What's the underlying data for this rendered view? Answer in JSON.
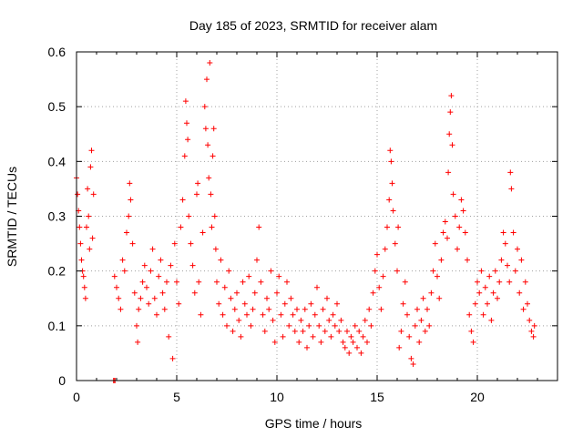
{
  "chart_data": {
    "type": "scatter",
    "title": "Day 185 of 2023, SRMTID for receiver alam",
    "xlabel": "GPS time / hours",
    "ylabel": "SRMTID / TECUs",
    "xlim": [
      0,
      24
    ],
    "ylim": [
      0,
      0.6
    ],
    "xticks": [
      0,
      5,
      10,
      15,
      20
    ],
    "yticks": [
      0,
      0.1,
      0.2,
      0.3,
      0.4,
      0.5,
      0.6
    ],
    "xtick_labels": [
      "0",
      "5",
      "10",
      "15",
      "20"
    ],
    "ytick_labels": [
      "0",
      "0.1",
      "0.2",
      "0.3",
      "0.4",
      "0.5",
      "0.6"
    ],
    "grid": true,
    "marker": "+",
    "color": "#ff0000",
    "series": [
      {
        "name": "SRMTID",
        "points": [
          [
            0.0,
            0.37
          ],
          [
            0.05,
            0.34
          ],
          [
            0.1,
            0.31
          ],
          [
            0.15,
            0.28
          ],
          [
            0.2,
            0.25
          ],
          [
            0.25,
            0.22
          ],
          [
            0.3,
            0.2
          ],
          [
            0.35,
            0.19
          ],
          [
            0.4,
            0.17
          ],
          [
            0.45,
            0.15
          ],
          [
            0.5,
            0.28
          ],
          [
            0.55,
            0.35
          ],
          [
            0.6,
            0.3
          ],
          [
            0.65,
            0.24
          ],
          [
            0.7,
            0.39
          ],
          [
            0.75,
            0.42
          ],
          [
            0.8,
            0.26
          ],
          [
            0.85,
            0.34
          ],
          [
            1.85,
            0.0
          ],
          [
            1.9,
            0.0
          ],
          [
            1.92,
            0.0
          ],
          [
            1.9,
            0.19
          ],
          [
            2.0,
            0.17
          ],
          [
            2.1,
            0.15
          ],
          [
            2.2,
            0.13
          ],
          [
            2.3,
            0.22
          ],
          [
            2.4,
            0.2
          ],
          [
            2.5,
            0.27
          ],
          [
            2.6,
            0.3
          ],
          [
            2.65,
            0.36
          ],
          [
            2.7,
            0.33
          ],
          [
            2.8,
            0.25
          ],
          [
            2.9,
            0.16
          ],
          [
            3.0,
            0.1
          ],
          [
            3.05,
            0.07
          ],
          [
            3.1,
            0.13
          ],
          [
            3.2,
            0.15
          ],
          [
            3.3,
            0.18
          ],
          [
            3.4,
            0.21
          ],
          [
            3.5,
            0.17
          ],
          [
            3.6,
            0.14
          ],
          [
            3.7,
            0.2
          ],
          [
            3.8,
            0.24
          ],
          [
            3.9,
            0.15
          ],
          [
            4.0,
            0.12
          ],
          [
            4.1,
            0.19
          ],
          [
            4.2,
            0.22
          ],
          [
            4.3,
            0.16
          ],
          [
            4.4,
            0.13
          ],
          [
            4.5,
            0.18
          ],
          [
            4.6,
            0.08
          ],
          [
            4.7,
            0.21
          ],
          [
            4.8,
            0.04
          ],
          [
            4.9,
            0.25
          ],
          [
            5.0,
            0.18
          ],
          [
            5.1,
            0.14
          ],
          [
            5.2,
            0.28
          ],
          [
            5.3,
            0.33
          ],
          [
            5.4,
            0.41
          ],
          [
            5.45,
            0.51
          ],
          [
            5.5,
            0.47
          ],
          [
            5.55,
            0.44
          ],
          [
            5.6,
            0.3
          ],
          [
            5.7,
            0.25
          ],
          [
            5.8,
            0.21
          ],
          [
            5.9,
            0.16
          ],
          [
            6.0,
            0.34
          ],
          [
            6.05,
            0.36
          ],
          [
            6.1,
            0.18
          ],
          [
            6.2,
            0.12
          ],
          [
            6.3,
            0.27
          ],
          [
            6.4,
            0.5
          ],
          [
            6.45,
            0.46
          ],
          [
            6.5,
            0.55
          ],
          [
            6.55,
            0.43
          ],
          [
            6.6,
            0.37
          ],
          [
            6.65,
            0.58
          ],
          [
            6.7,
            0.34
          ],
          [
            6.75,
            0.28
          ],
          [
            6.8,
            0.41
          ],
          [
            6.85,
            0.46
          ],
          [
            6.9,
            0.3
          ],
          [
            6.95,
            0.24
          ],
          [
            7.0,
            0.18
          ],
          [
            7.1,
            0.14
          ],
          [
            7.2,
            0.22
          ],
          [
            7.3,
            0.12
          ],
          [
            7.4,
            0.17
          ],
          [
            7.5,
            0.1
          ],
          [
            7.6,
            0.2
          ],
          [
            7.7,
            0.15
          ],
          [
            7.8,
            0.09
          ],
          [
            7.9,
            0.13
          ],
          [
            8.0,
            0.16
          ],
          [
            8.1,
            0.11
          ],
          [
            8.2,
            0.08
          ],
          [
            8.3,
            0.18
          ],
          [
            8.4,
            0.14
          ],
          [
            8.5,
            0.12
          ],
          [
            8.6,
            0.19
          ],
          [
            8.7,
            0.1
          ],
          [
            8.8,
            0.13
          ],
          [
            8.9,
            0.16
          ],
          [
            9.0,
            0.22
          ],
          [
            9.1,
            0.28
          ],
          [
            9.2,
            0.18
          ],
          [
            9.3,
            0.12
          ],
          [
            9.4,
            0.09
          ],
          [
            9.5,
            0.15
          ],
          [
            9.6,
            0.13
          ],
          [
            9.7,
            0.2
          ],
          [
            9.8,
            0.11
          ],
          [
            9.9,
            0.07
          ],
          [
            10.0,
            0.16
          ],
          [
            10.1,
            0.19
          ],
          [
            10.2,
            0.12
          ],
          [
            10.3,
            0.08
          ],
          [
            10.4,
            0.14
          ],
          [
            10.5,
            0.18
          ],
          [
            10.6,
            0.1
          ],
          [
            10.7,
            0.15
          ],
          [
            10.8,
            0.12
          ],
          [
            10.9,
            0.09
          ],
          [
            11.0,
            0.13
          ],
          [
            11.1,
            0.07
          ],
          [
            11.2,
            0.11
          ],
          [
            11.3,
            0.09
          ],
          [
            11.4,
            0.13
          ],
          [
            11.5,
            0.06
          ],
          [
            11.6,
            0.1
          ],
          [
            11.7,
            0.14
          ],
          [
            11.8,
            0.08
          ],
          [
            11.9,
            0.12
          ],
          [
            12.0,
            0.17
          ],
          [
            12.1,
            0.1
          ],
          [
            12.2,
            0.07
          ],
          [
            12.3,
            0.13
          ],
          [
            12.4,
            0.09
          ],
          [
            12.5,
            0.15
          ],
          [
            12.6,
            0.11
          ],
          [
            12.7,
            0.08
          ],
          [
            12.8,
            0.12
          ],
          [
            12.9,
            0.1
          ],
          [
            13.0,
            0.14
          ],
          [
            13.1,
            0.09
          ],
          [
            13.2,
            0.11
          ],
          [
            13.3,
            0.07
          ],
          [
            13.4,
            0.06
          ],
          [
            13.5,
            0.09
          ],
          [
            13.6,
            0.05
          ],
          [
            13.7,
            0.08
          ],
          [
            13.8,
            0.07
          ],
          [
            13.9,
            0.1
          ],
          [
            14.0,
            0.06
          ],
          [
            14.1,
            0.09
          ],
          [
            14.2,
            0.05
          ],
          [
            14.3,
            0.08
          ],
          [
            14.4,
            0.11
          ],
          [
            14.5,
            0.07
          ],
          [
            14.6,
            0.13
          ],
          [
            14.7,
            0.1
          ],
          [
            14.8,
            0.16
          ],
          [
            14.9,
            0.2
          ],
          [
            15.0,
            0.23
          ],
          [
            15.1,
            0.17
          ],
          [
            15.2,
            0.13
          ],
          [
            15.3,
            0.19
          ],
          [
            15.4,
            0.24
          ],
          [
            15.5,
            0.28
          ],
          [
            15.6,
            0.33
          ],
          [
            15.65,
            0.42
          ],
          [
            15.7,
            0.4
          ],
          [
            15.75,
            0.36
          ],
          [
            15.8,
            0.31
          ],
          [
            15.9,
            0.25
          ],
          [
            16.0,
            0.2
          ],
          [
            16.05,
            0.28
          ],
          [
            16.1,
            0.06
          ],
          [
            16.2,
            0.09
          ],
          [
            16.3,
            0.14
          ],
          [
            16.4,
            0.18
          ],
          [
            16.5,
            0.12
          ],
          [
            16.6,
            0.08
          ],
          [
            16.7,
            0.04
          ],
          [
            16.8,
            0.03
          ],
          [
            16.9,
            0.1
          ],
          [
            17.0,
            0.13
          ],
          [
            17.1,
            0.07
          ],
          [
            17.2,
            0.11
          ],
          [
            17.3,
            0.15
          ],
          [
            17.4,
            0.09
          ],
          [
            17.5,
            0.13
          ],
          [
            17.6,
            0.1
          ],
          [
            17.7,
            0.16
          ],
          [
            17.8,
            0.2
          ],
          [
            17.9,
            0.25
          ],
          [
            18.0,
            0.19
          ],
          [
            18.1,
            0.15
          ],
          [
            18.2,
            0.22
          ],
          [
            18.3,
            0.27
          ],
          [
            18.4,
            0.29
          ],
          [
            18.5,
            0.26
          ],
          [
            18.55,
            0.38
          ],
          [
            18.6,
            0.45
          ],
          [
            18.65,
            0.49
          ],
          [
            18.7,
            0.52
          ],
          [
            18.75,
            0.43
          ],
          [
            18.8,
            0.34
          ],
          [
            18.9,
            0.3
          ],
          [
            19.0,
            0.24
          ],
          [
            19.1,
            0.28
          ],
          [
            19.2,
            0.33
          ],
          [
            19.3,
            0.31
          ],
          [
            19.4,
            0.27
          ],
          [
            19.5,
            0.22
          ],
          [
            19.6,
            0.12
          ],
          [
            19.7,
            0.09
          ],
          [
            19.8,
            0.07
          ],
          [
            19.9,
            0.14
          ],
          [
            20.0,
            0.18
          ],
          [
            20.1,
            0.16
          ],
          [
            20.2,
            0.2
          ],
          [
            20.3,
            0.12
          ],
          [
            20.4,
            0.17
          ],
          [
            20.5,
            0.14
          ],
          [
            20.6,
            0.19
          ],
          [
            20.7,
            0.11
          ],
          [
            20.8,
            0.16
          ],
          [
            20.9,
            0.2
          ],
          [
            21.0,
            0.15
          ],
          [
            21.1,
            0.18
          ],
          [
            21.2,
            0.22
          ],
          [
            21.3,
            0.27
          ],
          [
            21.4,
            0.25
          ],
          [
            21.5,
            0.21
          ],
          [
            21.6,
            0.18
          ],
          [
            21.65,
            0.38
          ],
          [
            21.7,
            0.35
          ],
          [
            21.8,
            0.27
          ],
          [
            21.9,
            0.2
          ],
          [
            22.0,
            0.24
          ],
          [
            22.1,
            0.16
          ],
          [
            22.2,
            0.22
          ],
          [
            22.3,
            0.13
          ],
          [
            22.4,
            0.18
          ],
          [
            22.5,
            0.14
          ],
          [
            22.6,
            0.11
          ],
          [
            22.7,
            0.09
          ],
          [
            22.8,
            0.08
          ],
          [
            22.85,
            0.1
          ]
        ]
      }
    ]
  }
}
